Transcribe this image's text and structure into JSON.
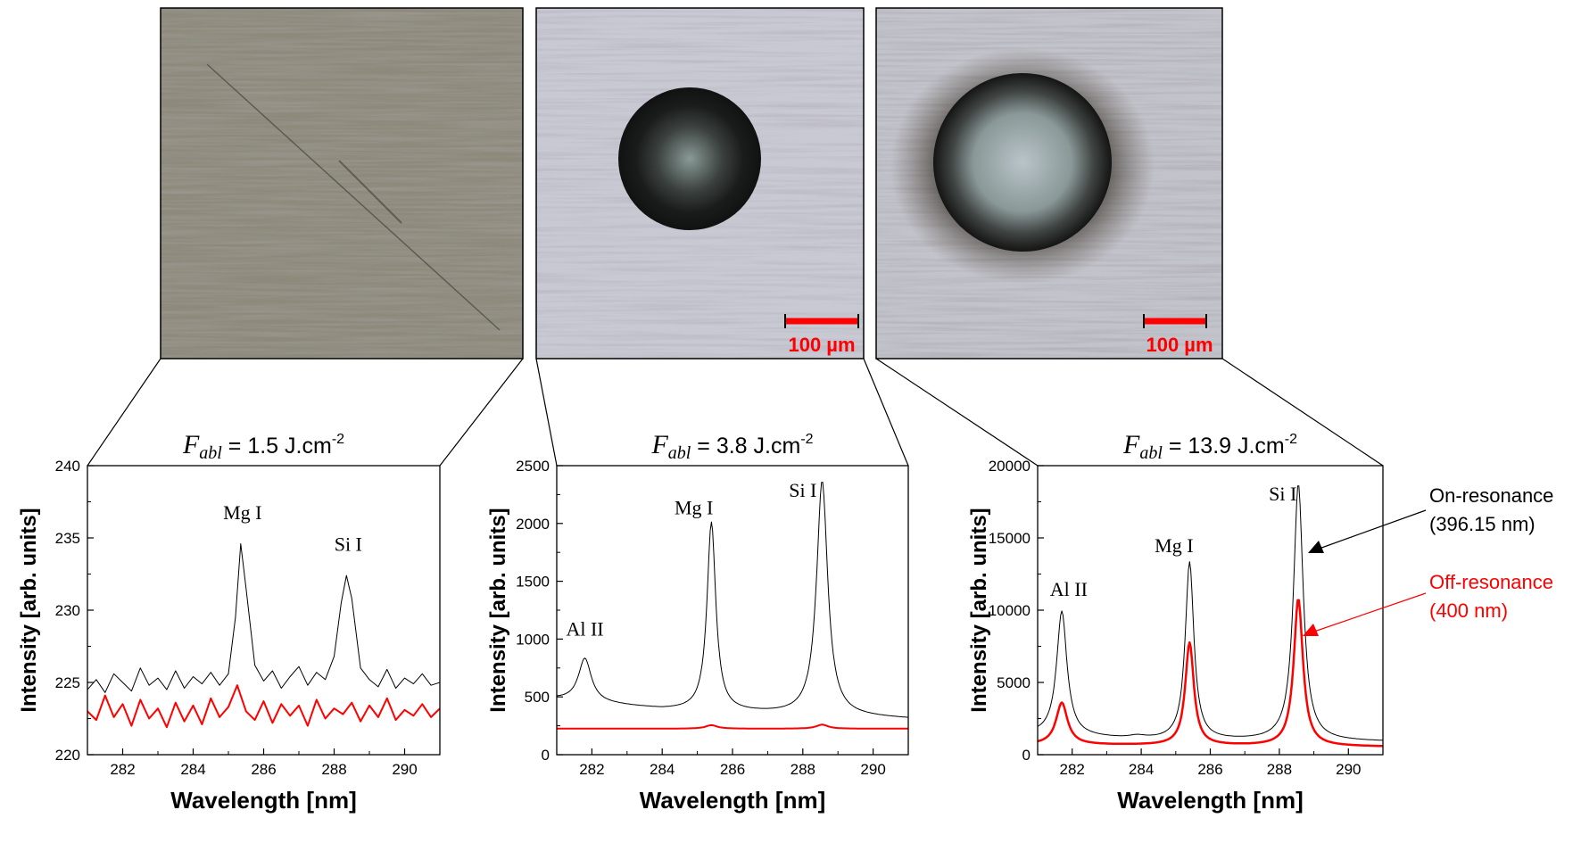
{
  "micrographs": [
    {
      "scale_bar": ""
    },
    {
      "scale_bar": "100 µm"
    },
    {
      "scale_bar": "100 µm"
    }
  ],
  "legend": {
    "on": {
      "line1": "On-resonance",
      "line2": "(396.15 nm)",
      "color": "#000000"
    },
    "off": {
      "line1": "Off-resonance",
      "line2": "(400 nm)",
      "color": "#ff0000"
    }
  },
  "chart_data": [
    {
      "type": "line",
      "title_symbol": "F",
      "title_sub": "abl",
      "title_rest": " = 1.5 J.cm",
      "title_sup": "-2",
      "xlabel": "Wavelength [nm]",
      "ylabel": "Intensity [arb. units]",
      "xlim": [
        281,
        291
      ],
      "ylim": [
        220,
        240
      ],
      "xticks": [
        282,
        284,
        286,
        288,
        290
      ],
      "yticks": [
        220,
        225,
        230,
        235,
        240
      ],
      "series": [
        {
          "color": "#000000",
          "width": 1,
          "x": [
            281.0,
            281.25,
            281.5,
            281.75,
            282.0,
            282.25,
            282.5,
            282.75,
            283.0,
            283.25,
            283.5,
            283.75,
            284.0,
            284.25,
            284.5,
            284.75,
            285.0,
            285.2,
            285.35,
            285.5,
            285.75,
            286.0,
            286.25,
            286.5,
            286.75,
            287.0,
            287.25,
            287.5,
            287.75,
            288.0,
            288.2,
            288.35,
            288.5,
            288.75,
            289.0,
            289.25,
            289.5,
            289.75,
            290.0,
            290.25,
            290.5,
            290.75,
            291.0
          ],
          "y": [
            224.5,
            225.2,
            224.3,
            225.6,
            225.0,
            224.4,
            226.0,
            224.8,
            225.3,
            224.5,
            225.8,
            224.6,
            225.4,
            224.9,
            225.7,
            224.8,
            225.6,
            229.5,
            234.6,
            231.5,
            226.2,
            225.1,
            225.8,
            224.6,
            225.4,
            226.1,
            224.8,
            225.7,
            225.2,
            226.8,
            230.5,
            232.4,
            230.8,
            226.0,
            225.2,
            224.7,
            225.9,
            224.6,
            225.3,
            224.9,
            225.6,
            224.8,
            225.0
          ]
        },
        {
          "color": "#ff0000",
          "width": 2,
          "x": [
            281.0,
            281.25,
            281.5,
            281.75,
            282.0,
            282.25,
            282.5,
            282.75,
            283.0,
            283.25,
            283.5,
            283.75,
            284.0,
            284.25,
            284.5,
            284.75,
            285.0,
            285.25,
            285.5,
            285.75,
            286.0,
            286.25,
            286.5,
            286.75,
            287.0,
            287.25,
            287.5,
            287.75,
            288.0,
            288.25,
            288.5,
            288.75,
            289.0,
            289.25,
            289.5,
            289.75,
            290.0,
            290.25,
            290.5,
            290.75,
            291.0
          ],
          "y": [
            223.0,
            222.4,
            224.1,
            222.6,
            223.5,
            222.0,
            223.8,
            222.5,
            223.2,
            221.9,
            223.6,
            222.3,
            223.4,
            222.1,
            223.9,
            222.6,
            223.3,
            224.8,
            223.0,
            222.4,
            223.7,
            222.2,
            223.5,
            222.7,
            223.4,
            222.0,
            223.8,
            222.5,
            223.2,
            222.8,
            223.6,
            222.3,
            223.4,
            222.6,
            223.9,
            222.4,
            223.1,
            222.7,
            223.5,
            222.6,
            223.2
          ]
        }
      ],
      "annotations": [
        {
          "text": "Mg I",
          "x": 285.4,
          "y": 236.3
        },
        {
          "text": "Si I",
          "x": 288.4,
          "y": 234.1
        }
      ]
    },
    {
      "type": "line",
      "title_symbol": "F",
      "title_sub": "abl",
      "title_rest": " = 3.8 J.cm",
      "title_sup": "-2",
      "xlabel": "Wavelength [nm]",
      "ylabel": "Intensity [arb. units]",
      "xlim": [
        281,
        291
      ],
      "ylim": [
        0,
        2500
      ],
      "xticks": [
        282,
        284,
        286,
        288,
        290
      ],
      "yticks": [
        0,
        500,
        1000,
        1500,
        2000,
        2500
      ],
      "series": [
        {
          "color": "#000000",
          "width": 1,
          "peaks": [
            {
              "center": 281.8,
              "amp": 375,
              "width": 0.22
            },
            {
              "center": 285.4,
              "amp": 1630,
              "width": 0.15
            },
            {
              "center": 288.55,
              "amp": 2030,
              "width": 0.19
            }
          ],
          "baseline": [
            [
              281.0,
              480
            ],
            [
              284.0,
              390
            ],
            [
              291.0,
              310
            ]
          ]
        },
        {
          "color": "#ff0000",
          "width": 2,
          "peaks": [
            {
              "center": 285.4,
              "amp": 30,
              "width": 0.2
            },
            {
              "center": 288.55,
              "amp": 35,
              "width": 0.2
            }
          ],
          "baseline": [
            [
              281.0,
              225
            ],
            [
              291.0,
              225
            ]
          ]
        }
      ],
      "annotations": [
        {
          "text": "Al II",
          "x": 281.8,
          "y": 1030
        },
        {
          "text": "Mg I",
          "x": 284.9,
          "y": 2080
        },
        {
          "text": "Si I",
          "x": 288.0,
          "y": 2230
        }
      ]
    },
    {
      "type": "line",
      "title_symbol": "F",
      "title_sub": "abl",
      "title_rest": " = 13.9 J.cm",
      "title_sup": "-2",
      "xlabel": "Wavelength [nm]",
      "ylabel": "Intensity [arb. units]",
      "xlim": [
        281,
        291
      ],
      "ylim": [
        0,
        20000
      ],
      "xticks": [
        282,
        284,
        286,
        288,
        290
      ],
      "yticks": [
        0,
        5000,
        10000,
        15000,
        20000
      ],
      "series": [
        {
          "color": "#000000",
          "width": 1,
          "peaks": [
            {
              "center": 281.7,
              "amp": 8600,
              "width": 0.18
            },
            {
              "center": 283.9,
              "amp": 200,
              "width": 0.3
            },
            {
              "center": 285.4,
              "amp": 12300,
              "width": 0.15
            },
            {
              "center": 288.55,
              "amp": 17800,
              "width": 0.17
            }
          ],
          "baseline": [
            [
              281.0,
              1400
            ],
            [
              284.0,
              1000
            ],
            [
              291.0,
              900
            ]
          ]
        },
        {
          "color": "#ff0000",
          "width": 2.5,
          "peaks": [
            {
              "center": 281.7,
              "amp": 2900,
              "width": 0.2
            },
            {
              "center": 285.4,
              "amp": 7100,
              "width": 0.15
            },
            {
              "center": 288.55,
              "amp": 10200,
              "width": 0.16
            }
          ],
          "baseline": [
            [
              281.0,
              700
            ],
            [
              291.0,
              550
            ]
          ]
        }
      ],
      "annotations": [
        {
          "text": "Al II",
          "x": 281.9,
          "y": 11000
        },
        {
          "text": "Mg I",
          "x": 284.95,
          "y": 14000
        },
        {
          "text": "Si I",
          "x": 288.1,
          "y": 17600
        }
      ]
    }
  ]
}
